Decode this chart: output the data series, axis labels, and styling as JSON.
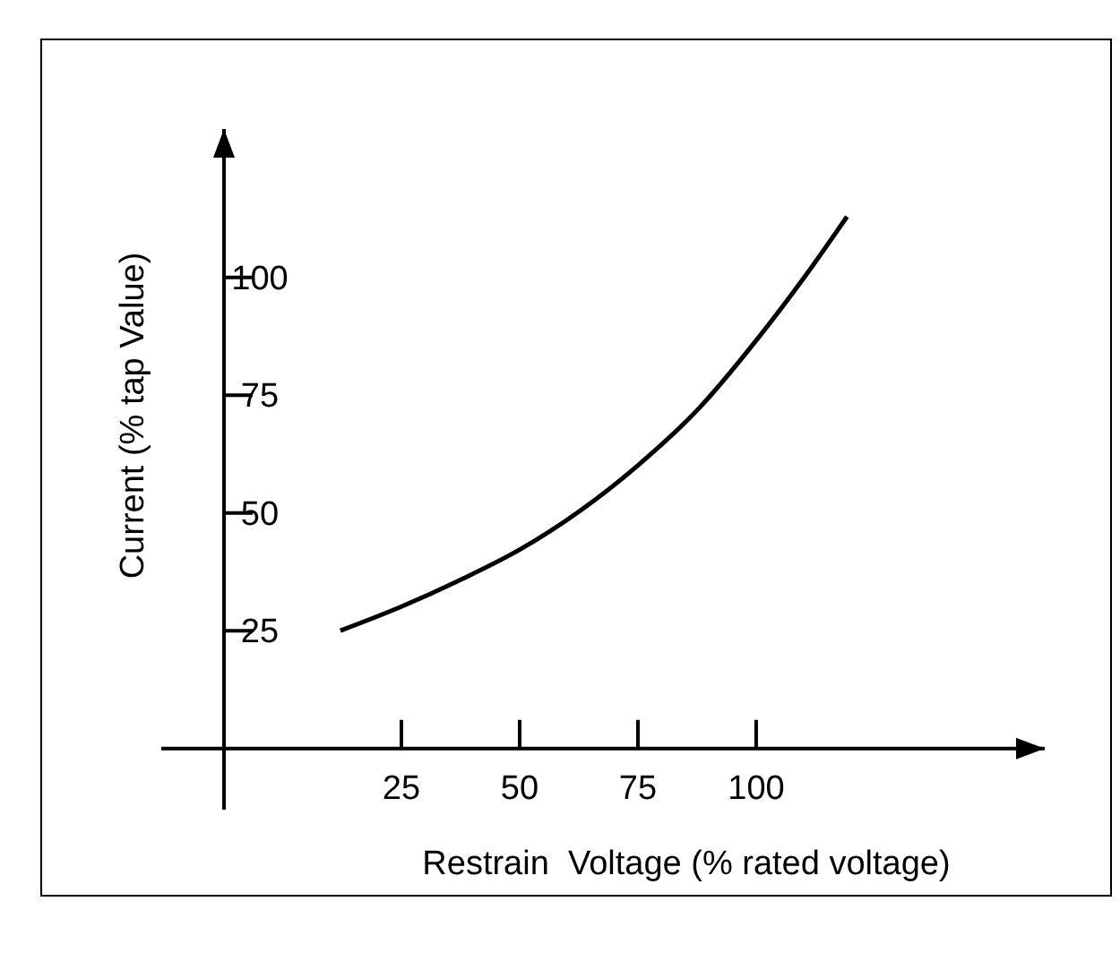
{
  "chart_data": {
    "type": "line",
    "xlabel": "Restrain  Voltage (% rated voltage)",
    "ylabel": "Current (% tap Value)",
    "x": [
      12.1,
      25,
      37.5,
      50,
      75,
      87.9,
      100,
      110.6,
      119.2
    ],
    "series": [
      {
        "color": "#000000",
        "values": [
          25,
          30.1,
          35.8,
          42.2,
          60.1,
          72.2,
          86.6,
          100.6,
          112.9
        ]
      }
    ],
    "xlim": [
      -12.5,
      161
    ],
    "ylim": [
      -13,
      131.5
    ],
    "xticks": [
      25,
      50,
      75,
      100
    ],
    "yticks": [
      25,
      50,
      75,
      100
    ],
    "grid": false,
    "marker": "none",
    "line_style": "solid"
  }
}
